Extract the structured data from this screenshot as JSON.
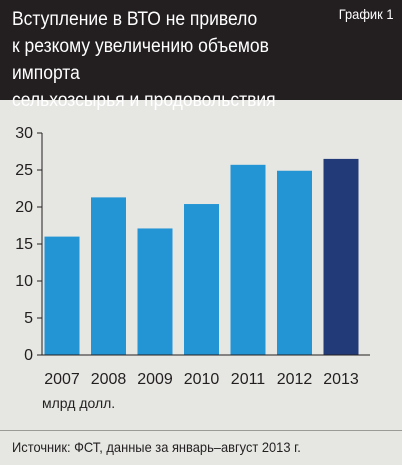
{
  "header": {
    "title": "Вступление в ВТО не привело\nк резкому увеличению объемов импорта\nсельхозсырья и продовольствия",
    "badge": "График 1"
  },
  "source": "Источник: ФСТ, данные за январь–август 2013 г.",
  "colors": {
    "bar": "#2394d4",
    "bar_highlight": "#233a78",
    "header_bg": "#231f20",
    "background": "#e6e7e3"
  },
  "chart_data": {
    "type": "bar",
    "categories": [
      "2007",
      "2008",
      "2009",
      "2010",
      "2011",
      "2012",
      "2013"
    ],
    "values": [
      16.0,
      21.3,
      17.1,
      20.4,
      25.7,
      24.9,
      26.5
    ],
    "highlight_index": 6,
    "yticks": [
      "0",
      "5",
      "10",
      "15",
      "20",
      "25",
      "30"
    ],
    "ylim": [
      0,
      30
    ],
    "unit_label": "млрд долл.",
    "grid": false
  }
}
